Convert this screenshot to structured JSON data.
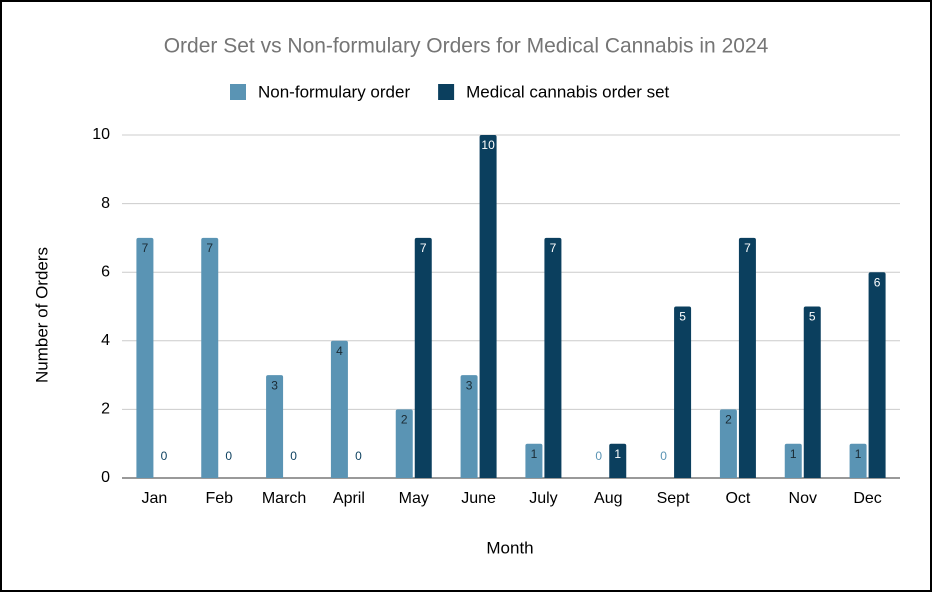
{
  "chart_data": {
    "type": "bar",
    "title": "Order Set vs Non-formulary Orders for Medical Cannabis in 2024",
    "x_label": "Month",
    "y_label": "Number of Orders",
    "categories": [
      "Jan",
      "Feb",
      "March",
      "April",
      "May",
      "June",
      "July",
      "Aug",
      "Sept",
      "Oct",
      "Nov",
      "Dec"
    ],
    "series": [
      {
        "name": "Non-formulary order",
        "color": "#5a94b4",
        "values": [
          7,
          7,
          3,
          4,
          2,
          3,
          1,
          0,
          0,
          2,
          1,
          1
        ]
      },
      {
        "name": "Medical cannabis order set",
        "color": "#0b3f5e",
        "values": [
          0,
          0,
          0,
          0,
          7,
          10,
          7,
          1,
          5,
          7,
          5,
          6
        ]
      }
    ],
    "ylim": [
      0,
      10
    ],
    "yticks": [
      0,
      2,
      4,
      6,
      8,
      10
    ],
    "grid": true,
    "legend": "top"
  }
}
